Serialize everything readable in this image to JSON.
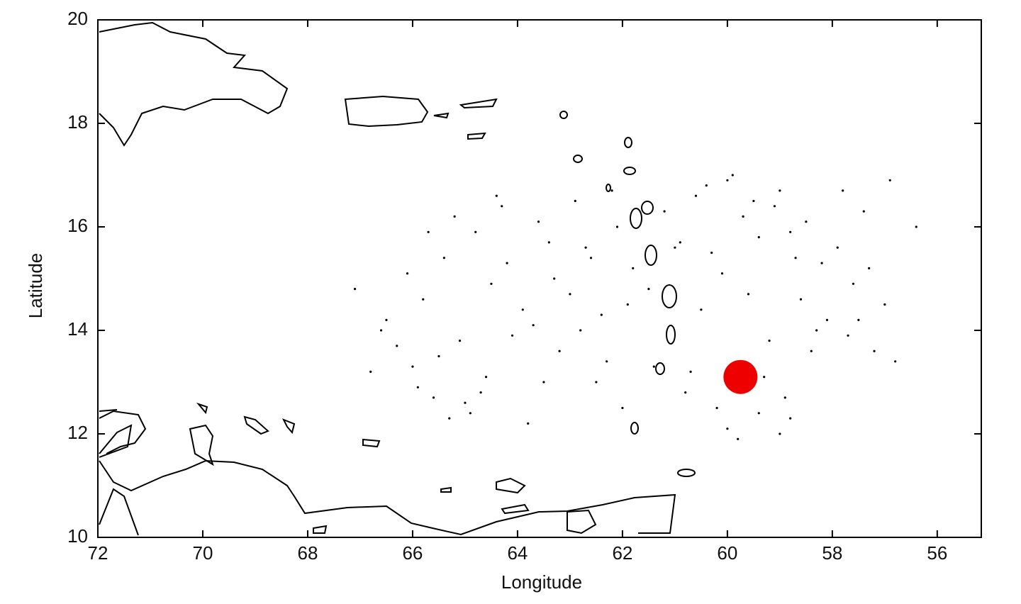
{
  "chart_data": {
    "type": "scatter",
    "x_label": "Longitude",
    "y_label": "Latitude",
    "xlim": [
      72,
      55.16
    ],
    "ylim": [
      10,
      20
    ],
    "xticks": [
      72,
      70,
      68,
      66,
      64,
      62,
      60,
      58,
      56
    ],
    "yticks": [
      10,
      12,
      14,
      16,
      18,
      20
    ],
    "series": [
      {
        "color": "#000000",
        "x": [
          66.5,
          66.1,
          65.8,
          65.4,
          65.1,
          64.8,
          64.5,
          64.2,
          63.9,
          63.6,
          63.3,
          63.0,
          62.7,
          62.4,
          62.1,
          61.8,
          61.5,
          61.2,
          60.9,
          60.6,
          60.3,
          60.0,
          59.7,
          59.4,
          59.1,
          58.8,
          58.5,
          58.2,
          57.9,
          57.6,
          57.3,
          57.0,
          66.8,
          66.3,
          65.9,
          65.5,
          65.0,
          64.6,
          64.1,
          63.7,
          63.2,
          62.8,
          62.3,
          61.9,
          61.4,
          60.8,
          60.4,
          59.9,
          59.5,
          59.0,
          58.6,
          58.1,
          57.7,
          57.2,
          56.8,
          67.1,
          66.6,
          66.0,
          65.6,
          65.2,
          64.9,
          64.3,
          63.8,
          63.4,
          62.9,
          62.5,
          62.0,
          61.0,
          60.5,
          60.1,
          59.6,
          59.2,
          58.7,
          58.3,
          57.8,
          57.4,
          56.9,
          56.4,
          65.7,
          65.3,
          64.7,
          64.4,
          63.5,
          62.6,
          62.2,
          60.7,
          60.2,
          59.3,
          58.9,
          58.4,
          57.5,
          60.0,
          59.8,
          59.4,
          59.0,
          58.8
        ],
        "values": [
          14.2,
          15.1,
          14.6,
          15.4,
          13.8,
          15.9,
          14.9,
          15.3,
          14.4,
          16.1,
          15.0,
          14.7,
          15.6,
          14.3,
          16.0,
          15.2,
          14.8,
          16.3,
          15.7,
          16.6,
          15.5,
          16.9,
          16.2,
          15.8,
          16.4,
          15.9,
          16.1,
          15.3,
          15.6,
          14.9,
          15.2,
          14.5,
          13.2,
          13.7,
          12.9,
          13.5,
          12.6,
          13.1,
          13.9,
          14.1,
          13.6,
          14.0,
          13.4,
          14.5,
          13.3,
          12.8,
          16.8,
          17.0,
          16.5,
          16.7,
          14.6,
          14.2,
          13.9,
          13.6,
          13.4,
          14.8,
          14.0,
          13.3,
          12.7,
          16.2,
          12.4,
          16.4,
          12.2,
          15.7,
          16.5,
          13.0,
          12.5,
          15.6,
          14.4,
          15.1,
          14.7,
          13.8,
          15.4,
          14.0,
          16.7,
          16.3,
          16.9,
          16.0,
          15.9,
          12.3,
          12.8,
          16.6,
          13.0,
          15.4,
          16.7,
          13.2,
          12.5,
          13.1,
          12.7,
          13.6,
          14.2,
          12.1,
          11.9,
          12.4,
          12.0,
          12.3
        ]
      },
      {
        "color": "#ee0000",
        "x": [
          59.75
        ],
        "values": [
          13.1
        ]
      }
    ]
  }
}
